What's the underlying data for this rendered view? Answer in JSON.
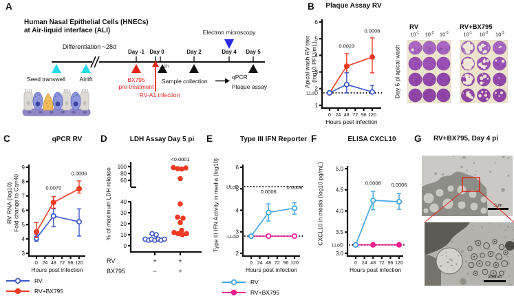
{
  "figure": {
    "colors": {
      "rv_blue": "#3a55c8",
      "rv_bx_red": "#ee3a24",
      "rv_lightblue": "#3fa3e8",
      "rv_bx_magenta": "#ee1d8e",
      "cyan_marker": "#25dbe6",
      "em_blue_marker": "#2a2ae2",
      "red_accent": "#e8231b"
    }
  },
  "panel_a": {
    "letter": "A",
    "title_line1": "Human Nasal Epithelial Cells (HNECs)",
    "title_line2": "at Air-liquid interface (ALI)",
    "differentiation": "Differentiation ~28d",
    "day_labels": [
      "Day -1",
      "Day 0",
      "Day 2",
      "Day 4",
      "Day 5"
    ],
    "seed_transwell": "Seed transwell",
    "airlift": "Airlift",
    "bx795_line1": "BX795",
    "bx795_line2": "pre-treatment",
    "one_hour": "1h",
    "rv_infection": "RV-A1 infection",
    "sample_collection": "Sample collection",
    "electron_microscopy": "Electron microscopy",
    "qpcr": "qPCR",
    "plaque_assay": "Plaque assay"
  },
  "panel_b": {
    "letter": "B",
    "side_label": "Day 5 pi apical wash",
    "dilutions": [
      {
        "base": "10",
        "exp": "-1"
      },
      {
        "base": "10",
        "exp": "-2"
      },
      {
        "base": "10",
        "exp": "-3"
      }
    ],
    "plates": [
      {
        "name": "RV",
        "clearance": [
          [
            0.02,
            0,
            0.01,
            0
          ],
          [
            0,
            0.01,
            0,
            0
          ],
          [
            0,
            0,
            0,
            0
          ]
        ]
      },
      {
        "name": "RV+BX795",
        "clearance": [
          [
            0.7,
            0.75,
            0.5,
            0.3
          ],
          [
            0.3,
            0.38,
            0.22,
            0.18
          ],
          [
            0.05,
            0.08,
            0.06,
            0.1
          ]
        ]
      }
    ]
  },
  "panel_c": {
    "letter": "C"
  },
  "panel_d": {
    "letter": "D",
    "row1_label": "RV",
    "row1_signs": [
      "+",
      "+"
    ],
    "row2_label": "BX795",
    "row2_signs": [
      "−",
      "+"
    ]
  },
  "panel_e": {
    "letter": "E"
  },
  "panel_f": {
    "letter": "F"
  },
  "panel_g": {
    "letter": "G",
    "title": "RV+BX795, Day 4 pi",
    "scalebar_top": "1μm",
    "scalebar_bottom": "200nm"
  },
  "legend_bc": [
    {
      "label": "RV",
      "color": "#3a55c8",
      "marker": "open"
    },
    {
      "label": "RV+BX795",
      "color": "#ee3a24",
      "marker": "filled"
    }
  ],
  "legend_ef": [
    {
      "label": "RV",
      "color": "#3fa3e8",
      "marker": "open"
    },
    {
      "label": "RV+BX795",
      "color": "#ee1d8e",
      "marker": "filled"
    }
  ],
  "chart_data": [
    {
      "id": "b",
      "type": "line",
      "title": "Plaque Assay RV",
      "xlabel": "Hours post infection",
      "ylabel": "Apical wash RV titer (log10 PFU/mL)",
      "ylabel_lines": [
        "Apical wash RV titer",
        "(log10 PFU/mL)"
      ],
      "xlim": [
        0,
        120
      ],
      "ylim": [
        1,
        6
      ],
      "xticks": [
        0,
        24,
        48,
        72,
        96,
        120
      ],
      "yticks": [
        "1",
        "2",
        "3",
        "4",
        "5",
        "6"
      ],
      "dotted": [
        {
          "y": 1.75,
          "label": "LLoD"
        }
      ],
      "series": [
        {
          "name": "RV+BX795",
          "color": "#ee3a24",
          "marker": "filled",
          "x": [
            0,
            48,
            120
          ],
          "y": [
            1.75,
            3.35,
            3.9
          ],
          "err": [
            null,
            [
              2.95,
              4.1
            ],
            [
              2.95,
              5.05
            ]
          ]
        },
        {
          "name": "RV",
          "color": "#3a55c8",
          "marker": "open",
          "x": [
            0,
            48,
            120
          ],
          "y": [
            1.75,
            2.25,
            1.8
          ],
          "err": [
            null,
            [
              1.75,
              2.95
            ],
            [
              1.75,
              2.2
            ]
          ]
        }
      ],
      "annotations": [
        {
          "x": 48,
          "y": 4.45,
          "text": "0.0023"
        },
        {
          "x": 120,
          "y": 5.35,
          "text": "0.0006"
        }
      ]
    },
    {
      "id": "c",
      "type": "line",
      "title": "qPCR RV",
      "xlabel": "Hours post infection",
      "ylabel": "RV RNA (log10) Fold change to Cq=40",
      "ylabel_lines": [
        "RV RNA (log10)",
        "Fold change to Cq=40"
      ],
      "xlim": [
        0,
        120
      ],
      "ylim": [
        3,
        9
      ],
      "xticks": [
        0,
        24,
        48,
        72,
        96,
        120
      ],
      "yticks": [
        "3",
        "4",
        "5",
        "6",
        "7",
        "8",
        "9"
      ],
      "dotted": [],
      "series": [
        {
          "name": "RV",
          "color": "#3a55c8",
          "marker": "open",
          "x": [
            0,
            48,
            120
          ],
          "y": [
            4.05,
            5.6,
            5.2
          ],
          "err": [
            [
              3.85,
              4.3
            ],
            [
              4.85,
              6.1
            ],
            [
              4.2,
              6.1
            ]
          ]
        },
        {
          "name": "RV+BX795",
          "color": "#ee3a24",
          "marker": "filled",
          "x": [
            0,
            48,
            120
          ],
          "y": [
            4.5,
            6.55,
            7.5
          ],
          "err": [
            [
              4.1,
              5.15
            ],
            [
              6.15,
              6.95
            ],
            [
              7.2,
              8.05
            ]
          ]
        }
      ],
      "annotations": [
        {
          "x": 48,
          "y": 7.45,
          "text": "0.0070"
        },
        {
          "x": 120,
          "y": 8.45,
          "text": "0.0006"
        }
      ]
    },
    {
      "id": "d",
      "type": "scatter",
      "title": "LDH Assay Day 5 pi",
      "ylabel": "% of maximum LDH release",
      "axis_break": [
        40,
        60
      ],
      "yticks_lower": [
        0,
        10,
        20,
        30,
        40
      ],
      "yticks_upper": [
        60,
        80,
        100
      ],
      "groups": [
        {
          "name": "RV",
          "color": "#3a55c8",
          "marker": "open",
          "values": [
            11,
            10,
            6,
            5,
            6,
            5,
            6,
            5,
            6
          ]
        },
        {
          "name": "RV+BX795",
          "color": "#ee3a24",
          "marker": "filled",
          "values": [
            97,
            94,
            93,
            96,
            65,
            38,
            26,
            25,
            21,
            14,
            12,
            11,
            10,
            11
          ]
        }
      ],
      "annotation": {
        "text": "<0.0001",
        "group": 1
      }
    },
    {
      "id": "e",
      "type": "line",
      "title": "Type III IFN Reporter",
      "xlabel": "Hours post infection",
      "ylabel": "Type III IFN Activity in media (log10)",
      "xlim": [
        0,
        120
      ],
      "ylim": [
        2,
        6
      ],
      "xticks": [
        0,
        24,
        48,
        72,
        96,
        120
      ],
      "yticks": [
        "2",
        "3",
        "4",
        "5",
        "6"
      ],
      "dotted": [
        {
          "y": 5.1,
          "label": "ULoD"
        },
        {
          "y": 2.8,
          "label": "LLoD"
        }
      ],
      "series": [
        {
          "name": "RV+BX795",
          "color": "#ee1d8e",
          "marker": "open",
          "x": [
            0,
            48,
            120
          ],
          "y": [
            2.8,
            2.8,
            2.8
          ],
          "err": [
            null,
            null,
            null
          ]
        },
        {
          "name": "RV",
          "color": "#3fa3e8",
          "marker": "open",
          "x": [
            0,
            48,
            120
          ],
          "y": [
            2.8,
            3.9,
            4.1
          ],
          "err": [
            null,
            [
              3.5,
              4.3
            ],
            [
              3.82,
              4.35
            ]
          ]
        }
      ],
      "annotations": [
        {
          "x": 48,
          "y": 4.78,
          "text": "0.0006"
        },
        {
          "x": 120,
          "y": 4.98,
          "text": "0.0006"
        }
      ]
    },
    {
      "id": "f",
      "type": "line",
      "title": "ELISA CXCL10",
      "xlabel": "Hours post infection",
      "ylabel": "CXCL10 in media (log10 pg/mL)",
      "xlim": [
        0,
        120
      ],
      "ylim": [
        3,
        5
      ],
      "xticks": [
        0,
        24,
        48,
        72,
        96,
        120
      ],
      "yticks": [
        "3.0",
        "3.5",
        "4.0",
        "4.5",
        "5.0"
      ],
      "dotted": [
        {
          "y": 3.2,
          "label": "LLoD"
        }
      ],
      "series": [
        {
          "name": "RV+BX795",
          "color": "#ee1d8e",
          "marker": "filled",
          "x": [
            0,
            48,
            120
          ],
          "y": [
            3.2,
            3.2,
            3.2
          ],
          "err": [
            null,
            null,
            null
          ]
        },
        {
          "name": "RV",
          "color": "#3fa3e8",
          "marker": "open",
          "x": [
            0,
            48,
            120
          ],
          "y": [
            3.2,
            4.25,
            4.22
          ],
          "err": [
            null,
            [
              4.03,
              4.46
            ],
            [
              4.04,
              4.41
            ]
          ]
        }
      ],
      "annotations": [
        {
          "x": 48,
          "y": 4.62,
          "text": "0.0006"
        },
        {
          "x": 120,
          "y": 4.58,
          "text": "0.0006"
        }
      ]
    }
  ]
}
